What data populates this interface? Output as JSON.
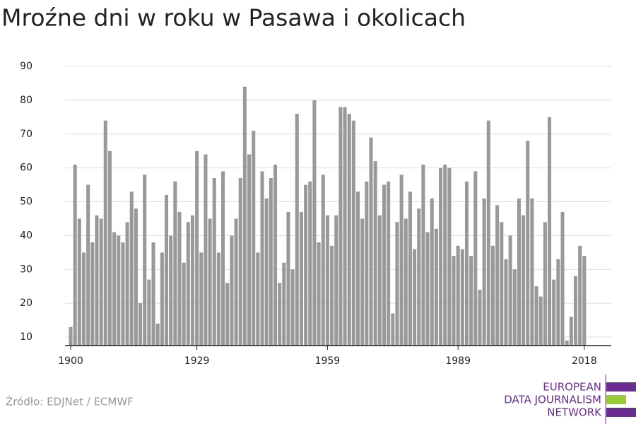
{
  "chart_data": {
    "type": "bar",
    "title": "Mroźne dni w roku w Pasawa i okolicach",
    "x": [
      1900,
      1901,
      1902,
      1903,
      1904,
      1905,
      1906,
      1907,
      1908,
      1909,
      1910,
      1911,
      1912,
      1913,
      1914,
      1915,
      1916,
      1917,
      1918,
      1919,
      1920,
      1921,
      1922,
      1923,
      1924,
      1925,
      1926,
      1927,
      1928,
      1929,
      1930,
      1931,
      1932,
      1933,
      1934,
      1935,
      1936,
      1937,
      1938,
      1939,
      1940,
      1941,
      1942,
      1943,
      1944,
      1945,
      1946,
      1947,
      1948,
      1949,
      1950,
      1951,
      1952,
      1953,
      1954,
      1955,
      1956,
      1957,
      1958,
      1959,
      1960,
      1961,
      1962,
      1963,
      1964,
      1965,
      1966,
      1967,
      1968,
      1969,
      1970,
      1971,
      1972,
      1973,
      1974,
      1975,
      1976,
      1977,
      1978,
      1979,
      1980,
      1981,
      1982,
      1983,
      1984,
      1985,
      1986,
      1987,
      1988,
      1989,
      1990,
      1991,
      1992,
      1993,
      1994,
      1995,
      1996,
      1997,
      1998,
      1999,
      2000,
      2001,
      2002,
      2003,
      2004,
      2005,
      2006,
      2007,
      2008,
      2009,
      2010,
      2011,
      2012,
      2013,
      2014,
      2015,
      2016,
      2017,
      2018
    ],
    "values": [
      13,
      61,
      45,
      35,
      55,
      38,
      46,
      45,
      74,
      65,
      41,
      40,
      38,
      44,
      53,
      48,
      20,
      58,
      27,
      38,
      14,
      35,
      52,
      40,
      56,
      47,
      32,
      44,
      46,
      65,
      35,
      64,
      45,
      57,
      35,
      59,
      26,
      40,
      45,
      57,
      84,
      64,
      71,
      35,
      59,
      51,
      57,
      61,
      26,
      32,
      47,
      30,
      76,
      47,
      55,
      56,
      80,
      38,
      58,
      46,
      37,
      46,
      78,
      78,
      76,
      74,
      53,
      45,
      56,
      69,
      62,
      46,
      55,
      56,
      17,
      44,
      58,
      45,
      53,
      36,
      48,
      61,
      41,
      51,
      42,
      60,
      61,
      60,
      34,
      37,
      36,
      56,
      34,
      59,
      24,
      51,
      74,
      37,
      49,
      44,
      33,
      40,
      30,
      51,
      46,
      68,
      51,
      25,
      22,
      44,
      75,
      27,
      33,
      47,
      9,
      16,
      28,
      37,
      34
    ],
    "color": "#999999",
    "xlim": [
      1898.7,
      2024.2
    ],
    "xticks": [
      1900,
      1929,
      1959,
      1989,
      2018
    ],
    "ylim": [
      7.5,
      90
    ],
    "yticks": [
      10,
      20,
      30,
      40,
      50,
      60,
      70,
      80,
      90
    ],
    "grid": true
  },
  "footer": {
    "source": "Źródło: EDJNet / ECMWF",
    "logo": [
      "EUROPEAN",
      "DATA JOURNALISM",
      "NETWORK"
    ]
  }
}
